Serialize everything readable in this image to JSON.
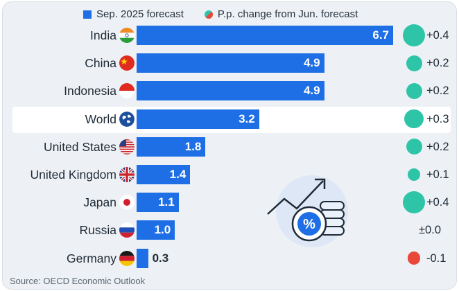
{
  "legend": {
    "bars_label": "Sep. 2025 forecast",
    "change_label": "P.p. change from Jun. forecast"
  },
  "colors": {
    "bar": "#1e6fe6",
    "positive": "#2ec4a8",
    "negative": "#e8473a",
    "highlight_row": "#ffffff"
  },
  "chart_data": {
    "type": "bar",
    "orientation": "horizontal",
    "title": "",
    "categories": [
      "India",
      "China",
      "Indonesia",
      "World",
      "United States",
      "United Kingdom",
      "Japan",
      "Russia",
      "Germany"
    ],
    "series": [
      {
        "name": "Sep. 2025 forecast",
        "values": [
          6.7,
          4.9,
          4.9,
          3.2,
          1.8,
          1.4,
          1.1,
          1.0,
          0.3
        ]
      },
      {
        "name": "P.p. change from Jun. forecast",
        "values": [
          0.4,
          0.2,
          0.2,
          0.3,
          0.2,
          0.1,
          0.4,
          0.0,
          -0.1
        ]
      }
    ],
    "value_labels": [
      "6.7",
      "4.9",
      "4.9",
      "3.2",
      "1.8",
      "1.4",
      "1.1",
      "1.0",
      "0.3"
    ],
    "change_labels": [
      "+0.4",
      "+0.2",
      "+0.2",
      "+0.3",
      "+0.2",
      "+0.1",
      "+0.4",
      "±0.0",
      "-0.1"
    ],
    "flag_icons": [
      "india-flag-icon",
      "china-flag-icon",
      "indonesia-flag-icon",
      "world-globe-icon",
      "us-flag-icon",
      "uk-flag-icon",
      "japan-flag-icon",
      "russia-flag-icon",
      "germany-flag-icon"
    ],
    "highlighted_category": "World",
    "xlim": [
      0,
      6.7
    ]
  },
  "illustration_icon": "percent-coins-growth-icon",
  "source": "Source: OECD Economic Outlook"
}
